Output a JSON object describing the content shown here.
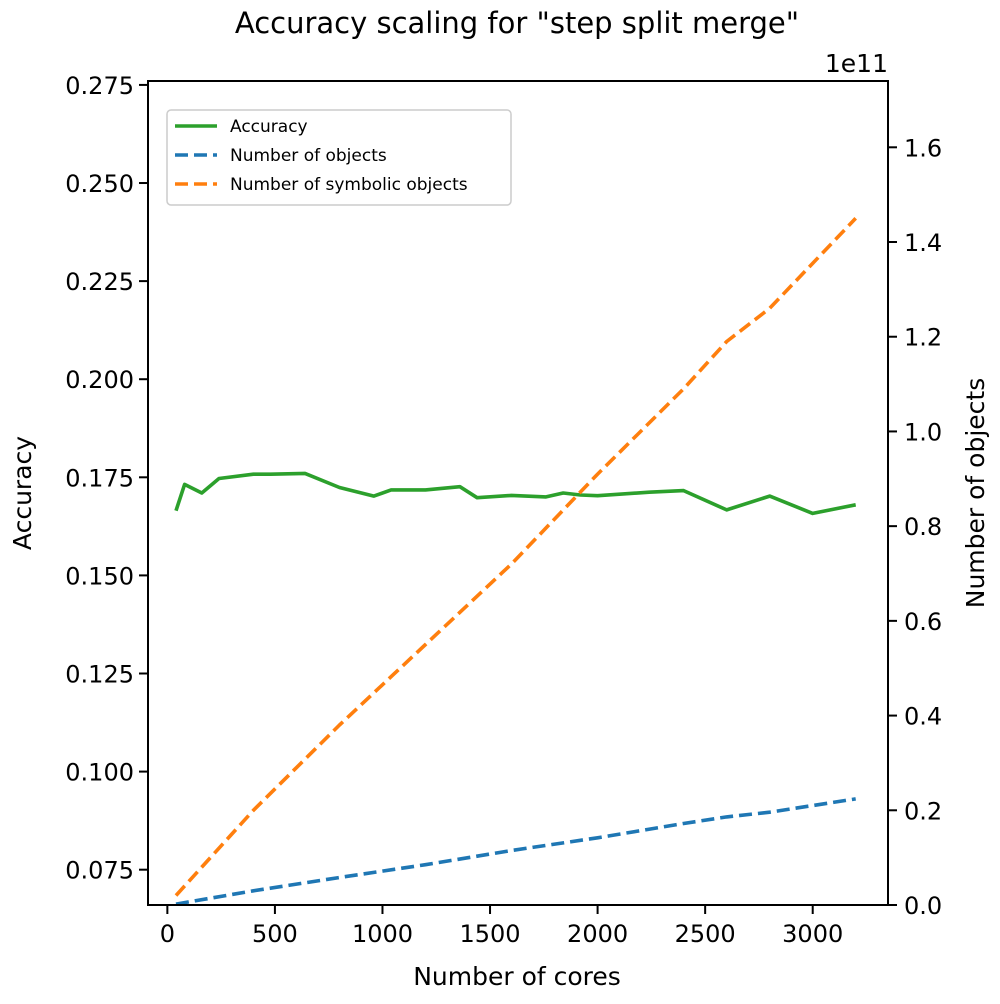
{
  "chart_data": {
    "type": "line",
    "title": "Accuracy scaling for \"step split merge\"",
    "xlabel": "Number of cores",
    "ylabel_left": "Accuracy",
    "ylabel_right": "Number of objects",
    "right_axis_offset_label": "1e11",
    "xlim": [
      -90,
      3350
    ],
    "ylim_left": [
      0.066,
      0.276
    ],
    "ylim_right": [
      0,
      1.74
    ],
    "right_axis_unit": "1e11",
    "x_ticks": [
      0,
      500,
      1000,
      1500,
      2000,
      2500,
      3000
    ],
    "left_ticks": [
      0.075,
      0.1,
      0.125,
      0.15,
      0.175,
      0.2,
      0.225,
      0.25,
      0.275
    ],
    "left_tick_labels": [
      "0.075",
      "0.100",
      "0.125",
      "0.150",
      "0.175",
      "0.200",
      "0.225",
      "0.250",
      "0.275"
    ],
    "right_ticks": [
      0.0,
      0.2,
      0.4,
      0.6,
      0.8,
      1.0,
      1.2,
      1.4,
      1.6
    ],
    "right_tick_labels": [
      "0.0",
      "0.2",
      "0.4",
      "0.6",
      "0.8",
      "1.0",
      "1.2",
      "1.4",
      "1.6"
    ],
    "grid": false,
    "legend_position": "top-left",
    "series": [
      {
        "name": "Accuracy",
        "axis": "left",
        "color": "#2ca02c",
        "style": "solid",
        "x": [
          40,
          80,
          160,
          240,
          400,
          480,
          640,
          800,
          960,
          1040,
          1200,
          1360,
          1440,
          1600,
          1760,
          1840,
          1920,
          2000,
          2240,
          2400,
          2600,
          2800,
          3000,
          3200
        ],
        "y": [
          0.1665,
          0.1732,
          0.171,
          0.1747,
          0.1758,
          0.1758,
          0.176,
          0.1724,
          0.1702,
          0.1718,
          0.1718,
          0.1726,
          0.1698,
          0.1704,
          0.17,
          0.171,
          0.1705,
          0.1703,
          0.1712,
          0.1716,
          0.1667,
          0.1702,
          0.1658,
          0.168
        ]
      },
      {
        "name": "Number of objects",
        "axis": "right",
        "color": "#1f77b4",
        "style": "dashed",
        "x": [
          40,
          400,
          800,
          1200,
          1600,
          2000,
          2400,
          2600,
          2800,
          3200
        ],
        "y": [
          0.002,
          0.03,
          0.058,
          0.085,
          0.115,
          0.142,
          0.172,
          0.186,
          0.196,
          0.224
        ]
      },
      {
        "name": "Number of symbolic objects",
        "axis": "right",
        "color": "#ff7f0e",
        "style": "dashed",
        "x": [
          40,
          400,
          800,
          1200,
          1600,
          2000,
          2400,
          2600,
          2800,
          3200
        ],
        "y": [
          0.02,
          0.2,
          0.38,
          0.55,
          0.72,
          0.91,
          1.09,
          1.19,
          1.26,
          1.45
        ]
      }
    ]
  }
}
